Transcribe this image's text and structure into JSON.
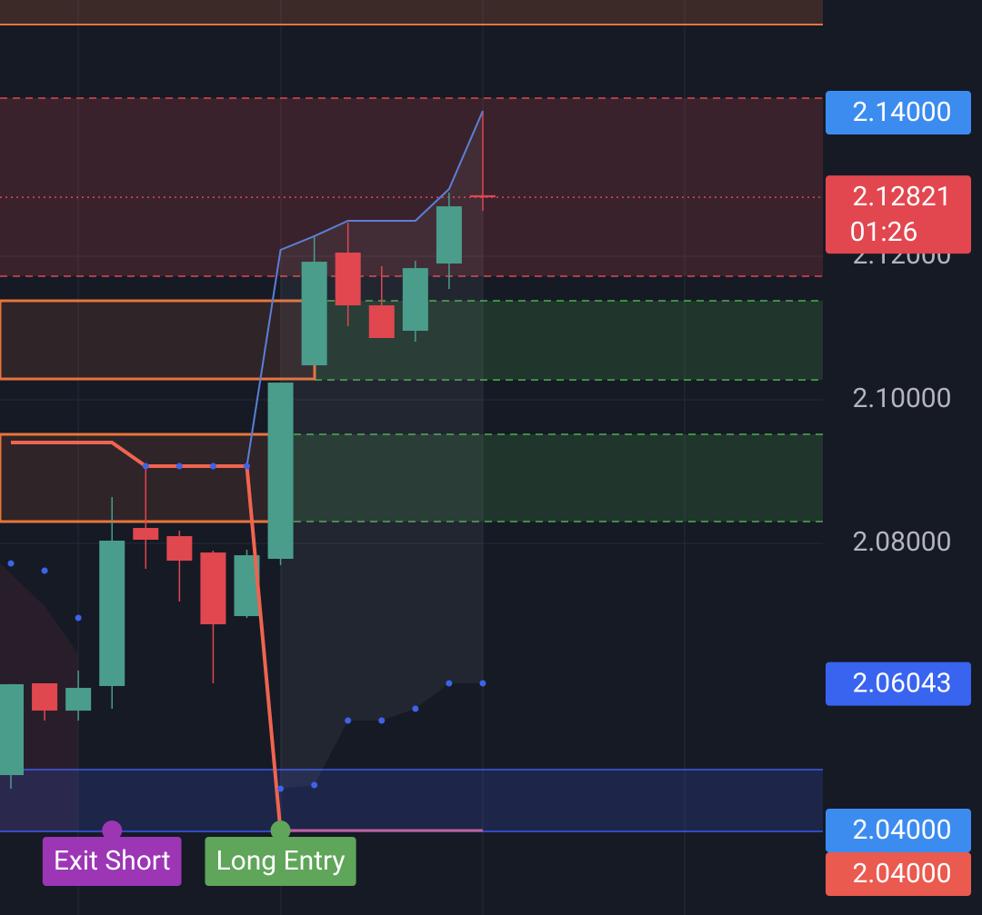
{
  "chart_data": {
    "type": "candlestick",
    "categories": [
      null,
      null,
      null,
      null,
      null,
      null,
      null,
      null,
      null,
      null,
      null,
      null,
      null,
      null,
      null
    ],
    "open": [
      2.04772,
      2.06051,
      2.0567,
      2.06013,
      2.08215,
      2.08101,
      2.07873,
      2.06987,
      2.07785,
      2.10481,
      2.12051,
      2.11316,
      2.10962,
      2.11899,
      2.1285
    ],
    "high": [
      2.0604,
      2.0605,
      2.06228,
      2.08646,
      2.09076,
      2.08177,
      2.07899,
      2.07911,
      2.1024,
      2.12278,
      2.12468,
      2.11861,
      2.11937,
      2.12886,
      2.14025
    ],
    "low": [
      2.04582,
      2.05532,
      2.05532,
      2.05696,
      2.07646,
      2.0719,
      2.06051,
      2.06962,
      2.07696,
      2.10481,
      2.11025,
      2.10861,
      2.1081,
      2.11544,
      2.12633
    ],
    "close": [
      2.06038,
      2.05671,
      2.05987,
      2.08038,
      2.08051,
      2.07759,
      2.06873,
      2.07835,
      2.1024,
      2.11924,
      2.11316,
      2.10861,
      2.11835,
      2.12696,
      2.12821
    ],
    "up_color": "#4a9d8b",
    "down_color": "#e0474f",
    "ylim": [
      2.02823,
      2.1557
    ],
    "yticks": [
      {
        "value": 2.08,
        "label": "2.08000"
      },
      {
        "value": 2.1,
        "label": "2.10000"
      },
      {
        "value": 2.12,
        "label": "2.12000"
      }
    ],
    "grid": true,
    "zones": [
      {
        "top": 2.1557,
        "bottom": 2.15228,
        "color": "#e8743b"
      },
      {
        "top": 2.14203,
        "bottom": 2.11722,
        "color": "#e0474f"
      },
      {
        "top": 2.1138,
        "bottom": 2.10278,
        "color": "#4caf50"
      },
      {
        "top": 2.09519,
        "bottom": 2.08304,
        "color": "#4caf50"
      },
      {
        "top": 2.04848,
        "bottom": 2.03987,
        "color": "#3d5af1"
      },
      {
        "top": 2.1138,
        "bottom": 2.10291,
        "color": "#e8743b"
      },
      {
        "top": 2.09519,
        "bottom": 2.08304,
        "color": "#e8743b"
      }
    ],
    "lines": [
      {
        "color": "#5b7fd6",
        "width": 2,
        "values": [
          null,
          null,
          null,
          null,
          null,
          null,
          null,
          2.09076,
          2.12089,
          2.1228,
          2.12494,
          2.12494,
          2.12494,
          2.12937,
          2.14025
        ]
      },
      {
        "color": "#ef6450",
        "width": 4,
        "values": [
          2.09405,
          2.09405,
          2.09405,
          2.09405,
          2.09076,
          2.09076,
          2.09076,
          2.09076,
          2.03987,
          null,
          null,
          null,
          null,
          null,
          null
        ]
      },
      {
        "color": "#c0609a",
        "width": 3,
        "values": [
          null,
          null,
          null,
          null,
          null,
          null,
          null,
          null,
          2.04,
          2.04,
          2.04,
          2.04,
          2.04,
          2.04,
          2.04
        ]
      }
    ],
    "stops": {
      "color": "#3d63e8",
      "values": [
        2.07721,
        2.0762,
        2.06962,
        null,
        2.09076,
        2.09076,
        2.09076,
        2.09076,
        2.04582,
        2.04633,
        2.05532,
        2.05532,
        2.05696,
        2.06051,
        2.06051
      ]
    },
    "signals": [
      {
        "name": "Exit Short",
        "color": "#9c36b5",
        "values": [
          null,
          null,
          null,
          2.04,
          null,
          null,
          null,
          null,
          null,
          null,
          null,
          null,
          null,
          null,
          null
        ]
      },
      {
        "name": "Long Entry",
        "color": "#5fa55a",
        "values": [
          null,
          null,
          null,
          null,
          null,
          null,
          null,
          null,
          2.04,
          null,
          null,
          null,
          null,
          null,
          null
        ]
      }
    ],
    "price_labels": [
      {
        "value": 2.14,
        "label": "2.14000",
        "color": "#3c8cf0"
      },
      {
        "value": 2.12821,
        "label": "2.12821",
        "sub": "01:26",
        "color": "#e2474f"
      },
      {
        "value": 2.06043,
        "label": "2.06043",
        "color": "#3864f0"
      },
      {
        "value": 2.04,
        "label": "2.04000",
        "color": "#3c8cf0"
      },
      {
        "value": 2.04,
        "label": "2.04000",
        "color": "#ea5a4f"
      }
    ]
  }
}
